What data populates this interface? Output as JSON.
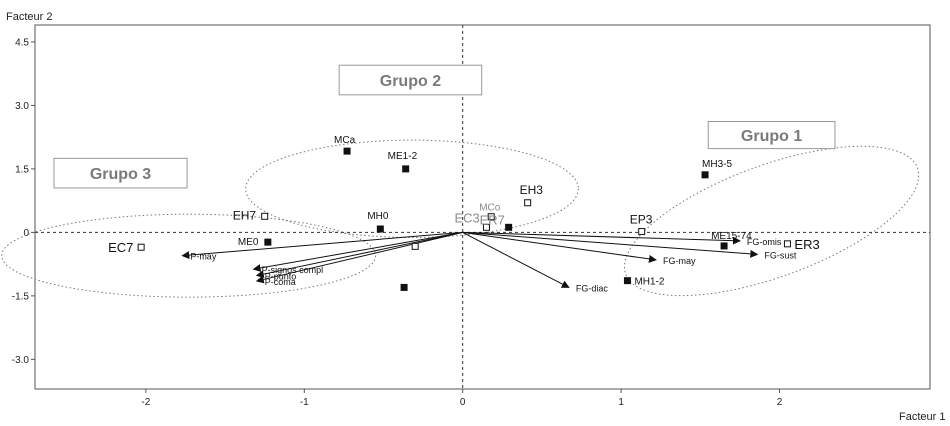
{
  "chart_data": {
    "type": "scatter",
    "xlabel": "Facteur 1",
    "ylabel": "Facteur 2",
    "xlim": [
      -2.7,
      2.95
    ],
    "ylim": [
      -3.7,
      4.9
    ],
    "x_ticks": [
      -2,
      -1,
      0,
      1,
      2
    ],
    "y_ticks": [
      4.5,
      3.0,
      1.5,
      0,
      -1.5,
      -3.0
    ],
    "x_tick_labels": [
      "-2",
      "-1",
      "0",
      "1",
      "2"
    ],
    "y_tick_labels": [
      "4.5",
      "3.0",
      "1.5",
      "0",
      "-1.5",
      "-3.0"
    ],
    "colors": {
      "ink": "#111111",
      "frame": "#555555",
      "gray_label": "#8a8a8a",
      "group_text": "#7a7a7a"
    },
    "points": [
      {
        "label": "MCa",
        "x": -0.73,
        "y": 1.92,
        "marker": "filled"
      },
      {
        "label": "ME1-2",
        "x": -0.36,
        "y": 1.5,
        "marker": "filled"
      },
      {
        "label": "MH0",
        "x": -0.52,
        "y": 0.08,
        "marker": "filled"
      },
      {
        "label": "ME0",
        "x": -1.23,
        "y": -0.23,
        "marker": "filled"
      },
      {
        "label": "EH7",
        "x": -1.25,
        "y": 0.38,
        "marker": "open"
      },
      {
        "label": "EC7",
        "x": -2.03,
        "y": -0.35,
        "marker": "open"
      },
      {
        "label": "MCo",
        "x": 0.18,
        "y": 0.37,
        "marker": "open"
      },
      {
        "label": "EC3",
        "x": 0.15,
        "y": 0.12,
        "marker": "open"
      },
      {
        "label": "ER7",
        "x": 0.29,
        "y": 0.12,
        "marker": "filled"
      },
      {
        "label": "EH3",
        "x": 0.41,
        "y": 0.7,
        "marker": "open"
      },
      {
        "label": "EP3",
        "x": 1.13,
        "y": 0.02,
        "marker": "open"
      },
      {
        "label": "ME15-74",
        "x": 1.65,
        "y": -0.32,
        "marker": "filled"
      },
      {
        "label": "ER3",
        "x": 2.05,
        "y": -0.27,
        "marker": "open"
      },
      {
        "label": "MH3-5",
        "x": 1.53,
        "y": 1.36,
        "marker": "filled"
      },
      {
        "label": "MH1-2",
        "x": 1.04,
        "y": -1.14,
        "marker": "filled"
      },
      {
        "label": "",
        "x": -0.37,
        "y": -1.3,
        "marker": "filled"
      },
      {
        "label": "",
        "x": -0.3,
        "y": -0.33,
        "marker": "open"
      }
    ],
    "vectors": [
      {
        "label": "P-may",
        "x": -1.77,
        "y": -0.55
      },
      {
        "label": "P-signos compl",
        "x": -1.32,
        "y": -0.87
      },
      {
        "label": "P-punto",
        "x": -1.3,
        "y": -1.02
      },
      {
        "label": "P-coma",
        "x": -1.3,
        "y": -1.15
      },
      {
        "label": "FG-omis",
        "x": 1.75,
        "y": -0.2
      },
      {
        "label": "FG-sust",
        "x": 1.86,
        "y": -0.52
      },
      {
        "label": "FG-may",
        "x": 1.22,
        "y": -0.65
      },
      {
        "label": "FG-diac",
        "x": 0.67,
        "y": -1.3
      }
    ],
    "groups": [
      {
        "label": "Grupo 1",
        "cx": 1.95,
        "cy": 0.27,
        "rx": 0.98,
        "ry": 1.32,
        "angle": -20,
        "box": [
          1.55,
          2.35,
          1.98,
          2.62
        ]
      },
      {
        "label": "Grupo 2",
        "cx": -0.32,
        "cy": 1.03,
        "rx": 1.05,
        "ry": 1.15,
        "angle": 0,
        "box": [
          -0.78,
          0.12,
          3.25,
          3.95
        ]
      },
      {
        "label": "Grupo 3",
        "cx": -1.73,
        "cy": -0.55,
        "rx": 1.18,
        "ry": 0.98,
        "angle": 0,
        "box": [
          -2.58,
          -1.74,
          1.05,
          1.75
        ]
      }
    ]
  }
}
